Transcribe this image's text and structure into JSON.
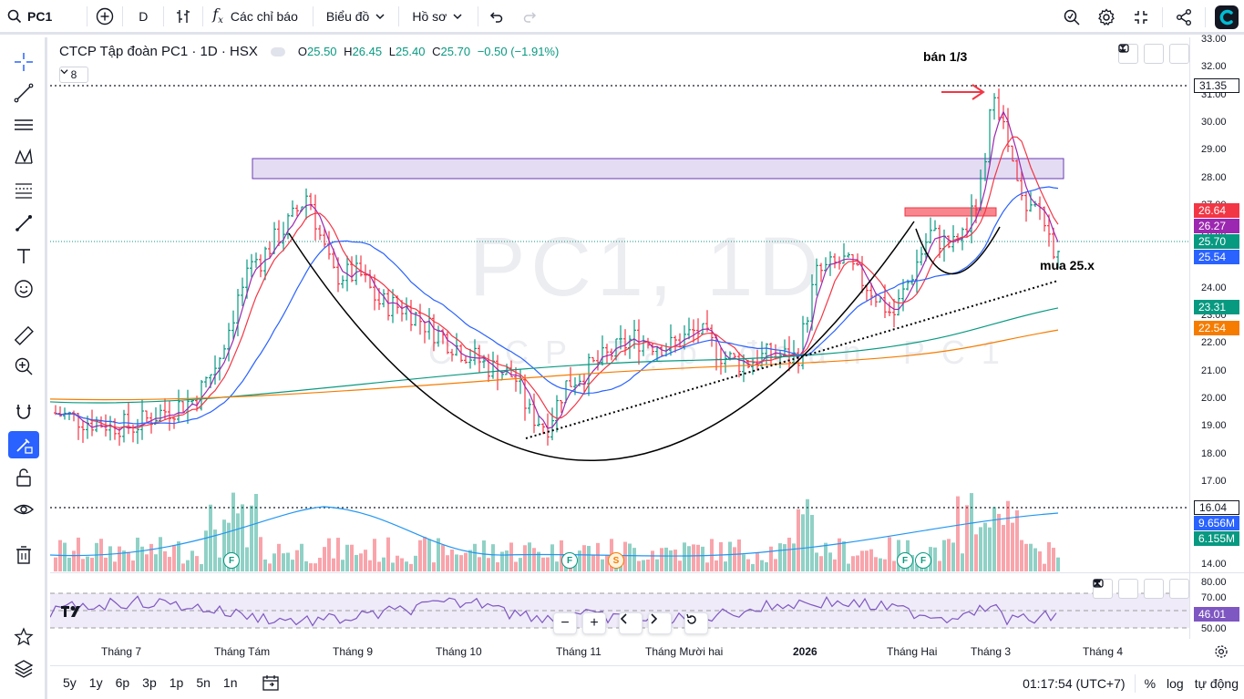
{
  "toolbar": {
    "symbol": "PC1",
    "interval": "D",
    "indicators_label": "Các chỉ báo",
    "chart_label": "Biểu đồ",
    "profile_label": "Hồ sơ"
  },
  "legend": {
    "title": "CTCP Tập đoàn PC1 · 1D · HSX",
    "open_label": "O",
    "open": "25.50",
    "high_label": "H",
    "high": "26.45",
    "low_label": "L",
    "low": "25.40",
    "close_label": "C",
    "close": "25.70",
    "change": "−0.50 (−1.91%)",
    "collapse_count": "8"
  },
  "watermark": {
    "big": "PC1, 1D",
    "small": "CTCP Tập đoàn PC1"
  },
  "annotations": {
    "sell": "bán 1/3",
    "buy": "mua 25.x"
  },
  "price_axis": [
    "33.00",
    "32.00",
    "31.00",
    "30.00",
    "29.00",
    "28.00",
    "27.00",
    "26.00",
    "25.00",
    "24.00",
    "23.00",
    "22.00",
    "21.00",
    "20.00",
    "19.00",
    "18.00",
    "17.00",
    "16.00",
    "15.00",
    "14.00"
  ],
  "rsi_axis": [
    "80.00",
    "70.00",
    "60.00",
    "50.00"
  ],
  "price_tags": [
    {
      "value": "31.35",
      "color": "#ffffff",
      "text": "#131722",
      "y": 94
    },
    {
      "value": "26.64",
      "color": "#f23645",
      "text": "#ffffff",
      "y": 231
    },
    {
      "value": "26.27",
      "color": "#9c27b0",
      "text": "#ffffff",
      "y": 248
    },
    {
      "value": "25.70",
      "color": "#089981",
      "text": "#ffffff",
      "y": 265
    },
    {
      "value": "25.54",
      "color": "#2962ff",
      "text": "#ffffff",
      "y": 282
    },
    {
      "value": "23.31",
      "color": "#089981",
      "text": "#ffffff",
      "y": 337
    },
    {
      "value": "22.54",
      "color": "#f57c00",
      "text": "#ffffff",
      "y": 360
    },
    {
      "value": "16.04",
      "color": "#ffffff",
      "text": "#131722",
      "y": 557
    },
    {
      "value": "9.656M",
      "color": "#2962ff",
      "text": "#ffffff",
      "y": 574
    },
    {
      "value": "6.155M",
      "color": "#089981",
      "text": "#ffffff",
      "y": 591
    },
    {
      "value": "46.01",
      "color": "#7e57c2",
      "text": "#ffffff",
      "y": 674
    }
  ],
  "time_axis": [
    "Tháng 7",
    "Tháng Tám",
    "Tháng 9",
    "Tháng 10",
    "Tháng 11",
    "Tháng Mười hai",
    "2026",
    "Tháng Hai",
    "Tháng 3",
    "Tháng 4"
  ],
  "markers": [
    "F",
    "F",
    "S",
    "F",
    "F"
  ],
  "bottombar": {
    "ranges": [
      "5y",
      "1y",
      "6p",
      "3p",
      "1p",
      "5n",
      "1n"
    ],
    "clock": "01:17:54 (UTC+7)",
    "percent": "%",
    "log": "log",
    "auto": "tự động"
  },
  "chart_data": {
    "type": "candlestick",
    "series_last": {
      "close": 25.7,
      "open": 25.5,
      "high": 26.45,
      "low": 25.4
    },
    "horizontal_levels": [
      31.35,
      16.04
    ],
    "indicator_values": {
      "ma_red": 26.64,
      "ma_purple": 26.27,
      "ma_blue": 25.54,
      "ma_green": 23.31,
      "ma_orange": 22.54
    },
    "volume_values": [
      "9.656M",
      "6.155M"
    ],
    "rsi": 46.01,
    "ylim": [
      14,
      33
    ]
  }
}
